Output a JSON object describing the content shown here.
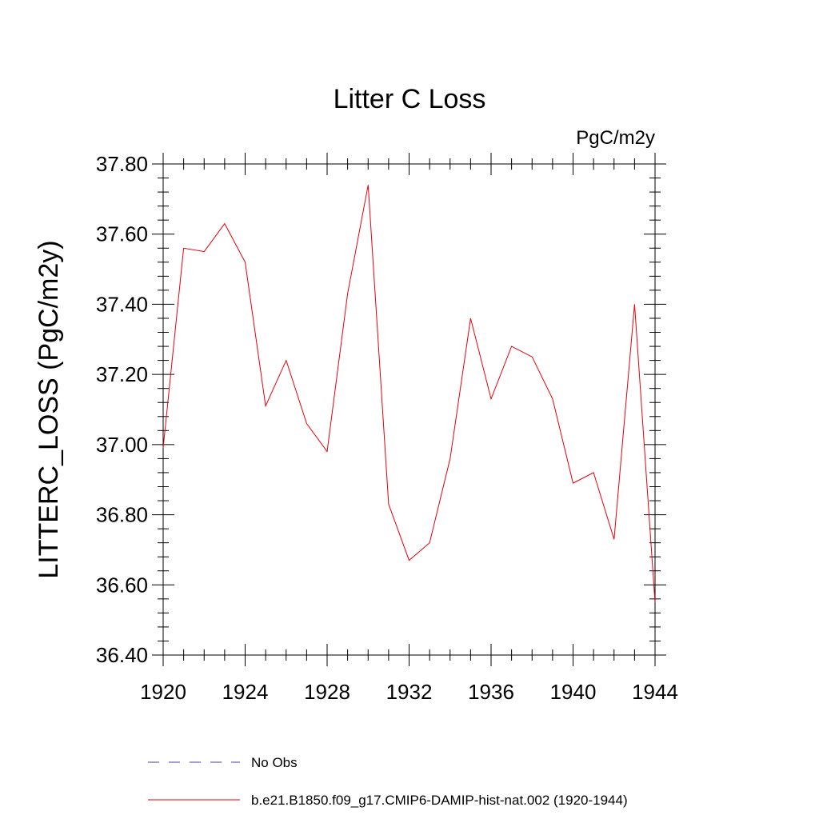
{
  "chart_data": {
    "type": "line",
    "title": "Litter C Loss",
    "units": "PgC/m2y",
    "ylabel": "LITTERC_LOSS  (PgC/m2y)",
    "xlabel": "",
    "xlim": [
      1920,
      1944
    ],
    "ylim": [
      36.4,
      37.8
    ],
    "x_ticks": [
      1920,
      1924,
      1928,
      1932,
      1936,
      1940,
      1944
    ],
    "x_tick_labels": [
      "1920",
      "1924",
      "1928",
      "1932",
      "1936",
      "1940",
      "1944"
    ],
    "y_ticks": [
      36.4,
      36.6,
      36.8,
      37.0,
      37.2,
      37.4,
      37.6,
      37.8
    ],
    "y_tick_labels": [
      "36.40",
      "36.60",
      "36.80",
      "37.00",
      "37.20",
      "37.40",
      "37.60",
      "37.80"
    ],
    "grid": false,
    "legend_position": "bottom",
    "legend": [
      {
        "label": "No Obs",
        "color": "#4b3fa0",
        "style": "dashed"
      },
      {
        "label": "b.e21.B1850.f09_g17.CMIP6-DAMIP-hist-nat.002 (1920-1944)",
        "color": "#e8000b",
        "style": "solid"
      }
    ],
    "series": [
      {
        "color": "#e8000b",
        "x": [
          1920,
          1921,
          1922,
          1923,
          1924,
          1925,
          1926,
          1927,
          1928,
          1929,
          1930,
          1931,
          1932,
          1933,
          1934,
          1935,
          1936,
          1937,
          1938,
          1939,
          1940,
          1941,
          1942,
          1943,
          1944
        ],
        "values": [
          36.99,
          37.56,
          37.55,
          37.63,
          37.52,
          37.11,
          37.24,
          37.06,
          36.98,
          37.43,
          37.74,
          36.83,
          36.67,
          36.72,
          36.96,
          37.36,
          37.13,
          37.28,
          37.25,
          37.13,
          36.89,
          36.92,
          36.73,
          37.4,
          36.55
        ]
      }
    ]
  }
}
